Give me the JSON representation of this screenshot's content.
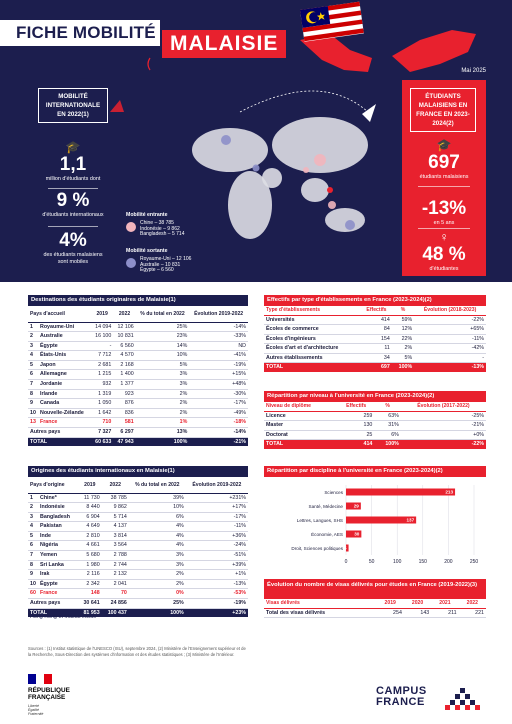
{
  "header": {
    "title": "FICHE MOBILITÉ",
    "country": "MALAISIE",
    "date": "Mai 2025"
  },
  "left_panel": {
    "title": "MOBILITÉ INTERNATIONALE EN 2022(1)",
    "kpi1_value": "1,1",
    "kpi1_label": "million d'étudiants dont",
    "kpi2_value": "9 %",
    "kpi2_label": "d'étudiants internationaux",
    "kpi3_value": "4%",
    "kpi3_label1": "des étudiants malaisiens",
    "kpi3_label2": "sont mobiles"
  },
  "legend": {
    "in_title": "Mobilité entrante",
    "in_lines": [
      "Chine – 38 785",
      "Indonésie – 9 862",
      "Bangladesh – 5 714"
    ],
    "out_title": "Mobilité sortante",
    "out_lines": [
      "Royaume-Uni – 12 106",
      "Australie – 10 831",
      "Égypte – 6 560"
    ],
    "in_color": "#f2b5bd",
    "out_color": "#8d8fc9"
  },
  "right_panel": {
    "title": "ÉTUDIANTS MALAISIENS EN FRANCE EN 2023-2024(2)",
    "kpi1_value": "697",
    "kpi1_label": "étudiants malaisiens",
    "kpi2_value": "-13%",
    "kpi2_label": "en 5 ans",
    "kpi3_value": "48 %",
    "kpi3_label": "d'étudiantes"
  },
  "dest_table": {
    "title": "Destinations des étudiants originaires de Malaisie(1)",
    "headers": [
      "Pays d'accueil",
      "2019",
      "2022",
      "% du total en 2022",
      "Évolution 2019-2022"
    ],
    "rows": [
      [
        "1",
        "Royaume-Uni",
        "14 094",
        "12 106",
        "25%",
        "-14%"
      ],
      [
        "2",
        "Australie",
        "16 100",
        "10 831",
        "23%",
        "-33%"
      ],
      [
        "3",
        "Égypte",
        "-",
        "6 560",
        "14%",
        "ND"
      ],
      [
        "4",
        "États-Unis",
        "7 712",
        "4 570",
        "10%",
        "-41%"
      ],
      [
        "5",
        "Japon",
        "2 681",
        "2 168",
        "5%",
        "-19%"
      ],
      [
        "6",
        "Allemagne",
        "1 215",
        "1 400",
        "3%",
        "+15%"
      ],
      [
        "7",
        "Jordanie",
        "932",
        "1 377",
        "3%",
        "+48%"
      ],
      [
        "8",
        "Irlande",
        "1 319",
        "923",
        "2%",
        "-30%"
      ],
      [
        "9",
        "Canada",
        "1 050",
        "876",
        "2%",
        "-17%"
      ],
      [
        "10",
        "Nouvelle-Zélande",
        "1 642",
        "836",
        "2%",
        "-49%"
      ],
      [
        "13",
        "France",
        "710",
        "581",
        "1%",
        "-18%"
      ]
    ],
    "autres": [
      "Autres pays",
      "7 327",
      "6 297",
      "13%",
      "-14%"
    ],
    "total": [
      "TOTAL",
      "60 633",
      "47 943",
      "100%",
      "-21%"
    ]
  },
  "orig_table": {
    "title": "Origines des étudiants internationaux en Malaisie(1)",
    "headers": [
      "Pays d'origine",
      "2019",
      "2022",
      "% du total en 2022",
      "Évolution 2019-2022"
    ],
    "rows": [
      [
        "1",
        "Chine*",
        "11 730",
        "38 785",
        "39%",
        "+231%"
      ],
      [
        "2",
        "Indonésie",
        "8 440",
        "9 862",
        "10%",
        "+17%"
      ],
      [
        "3",
        "Bangladesh",
        "6 904",
        "5 714",
        "6%",
        "-17%"
      ],
      [
        "4",
        "Pakistan",
        "4 649",
        "4 137",
        "4%",
        "-11%"
      ],
      [
        "5",
        "Inde",
        "2 810",
        "3 814",
        "4%",
        "+36%"
      ],
      [
        "6",
        "Nigéria",
        "4 661",
        "3 564",
        "4%",
        "-24%"
      ],
      [
        "7",
        "Yemen",
        "5 680",
        "2 788",
        "3%",
        "-51%"
      ],
      [
        "8",
        "Sri Lanka",
        "1 980",
        "2 744",
        "3%",
        "+39%"
      ],
      [
        "9",
        "Irak",
        "2 116",
        "2 132",
        "2%",
        "+1%"
      ],
      [
        "10",
        "Égypte",
        "2 342",
        "2 041",
        "2%",
        "-13%"
      ],
      [
        "60",
        "France",
        "148",
        "70",
        "0%",
        "-53%"
      ]
    ],
    "autres": [
      "Autres pays",
      "30 641",
      "24 856",
      "25%",
      "-19%"
    ],
    "total": [
      "TOTAL",
      "81 953",
      "100 437",
      "100%",
      "+23%"
    ]
  },
  "footnote": "*Hong Kong et Macao inclus",
  "sources": "Sources : (1) Institut statistique de l'UNESCO (ISU), septembre 2024, (2) Ministère de l'Enseignement supérieur et de la Recherche, Sous-Direction des systèmes d'information et des études statistiques ; (3) Ministère de l'Intérieur.",
  "type_table": {
    "title": "Effectifs par type d'établissements en France (2023-2024)(2)",
    "headers": [
      "Type d'établissements",
      "Effectifs",
      "%",
      "Évolution (2018-2023)"
    ],
    "rows": [
      [
        "Universités",
        "414",
        "59%",
        "-22%"
      ],
      [
        "Écoles de commerce",
        "84",
        "12%",
        "+65%"
      ],
      [
        "Écoles d'ingénieurs",
        "154",
        "22%",
        "-11%"
      ],
      [
        "Écoles d'art et d'architecture",
        "11",
        "2%",
        "-42%"
      ],
      [
        "Autres établissements",
        "34",
        "5%",
        "-"
      ]
    ],
    "total": [
      "TOTAL",
      "697",
      "100%",
      "-13%"
    ]
  },
  "level_table": {
    "title": "Répartition par niveau à l'université en France (2023-2024)(2)",
    "headers": [
      "Niveau de diplôme",
      "Effectifs",
      "%",
      "Évolution (2017-2022)"
    ],
    "rows": [
      [
        "Licence",
        "259",
        "63%",
        "-25%"
      ],
      [
        "Master",
        "130",
        "31%",
        "-21%"
      ],
      [
        "Doctorat",
        "25",
        "6%",
        "+0%"
      ]
    ],
    "total": [
      "TOTAL",
      "414",
      "100%",
      "-22%"
    ]
  },
  "discipline": {
    "title": "Répartition par discipline à l'université en France (2023-2024)(2)"
  },
  "chart_data": {
    "type": "bar",
    "orientation": "horizontal",
    "categories": [
      "Sciences",
      "Santé, Médecine",
      "Lettres, Langues, SHS",
      "Économie, AES",
      "Droit, Sciences politiques"
    ],
    "values": [
      213,
      29,
      137,
      30,
      5
    ],
    "xlim": [
      0,
      250
    ],
    "xticks": [
      "0",
      "50",
      "100",
      "150",
      "200",
      "250"
    ],
    "bar_color": "#e8212e",
    "grid": true
  },
  "visa_table": {
    "title": "Évolution du nombre de visas délivrés pour études en France (2019-2022)(3)",
    "headers": [
      "Visas délivrés",
      "2019",
      "2020",
      "2021",
      "2022"
    ],
    "row": [
      "Total des visas délivrés",
      "254",
      "143",
      "211",
      "221"
    ]
  },
  "logos": {
    "rf_line1": "RÉPUBLIQUE",
    "rf_line2": "FRANÇAISE",
    "rf_motto1": "Liberté",
    "rf_motto2": "Égalité",
    "rf_motto3": "Fraternité",
    "cf_line1": "CAMPUS",
    "cf_line2": "FRANCE"
  }
}
